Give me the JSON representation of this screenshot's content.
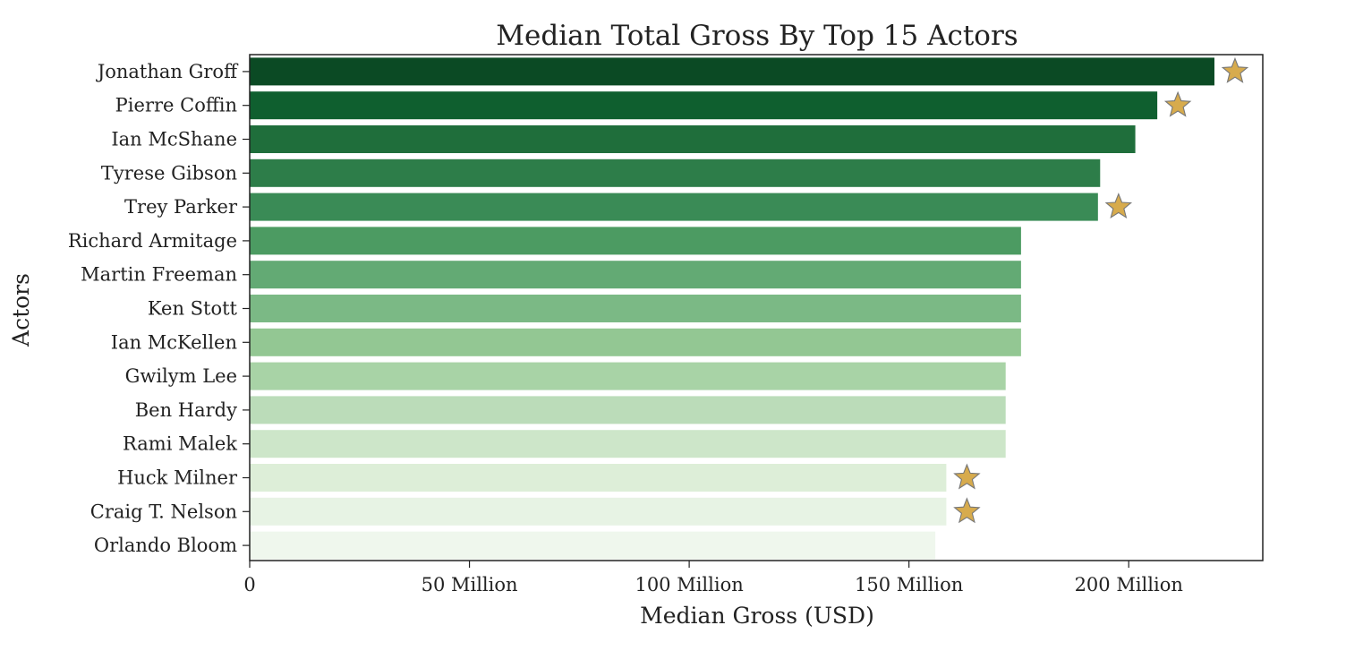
{
  "chart_data": {
    "type": "bar",
    "orientation": "horizontal",
    "title": "Median Total Gross By Top 15 Actors",
    "xlabel": "Median Gross (USD)",
    "ylabel": "Actors",
    "categories": [
      "Jonathan Groff",
      "Pierre Coffin",
      "Ian McShane",
      "Tyrese Gibson",
      "Trey Parker",
      "Richard Armitage",
      "Martin Freeman",
      "Ken Stott",
      "Ian McKellen",
      "Gwilym Lee",
      "Ben Hardy",
      "Rami Malek",
      "Huck Milner",
      "Craig T. Nelson",
      "Orlando Bloom"
    ],
    "values": [
      219500000,
      206500000,
      201500000,
      193500000,
      193000000,
      175500000,
      175500000,
      175500000,
      175500000,
      172000000,
      172000000,
      172000000,
      158500000,
      158500000,
      156000000
    ],
    "starred": [
      true,
      true,
      false,
      false,
      true,
      false,
      false,
      false,
      false,
      false,
      false,
      false,
      true,
      true,
      false
    ],
    "xlim": [
      0,
      230500000
    ],
    "xticks": [
      0,
      50000000,
      100000000,
      150000000,
      200000000
    ],
    "xtick_labels": [
      "0",
      "50 Million",
      "100 Million",
      "150 Million",
      "200 Million"
    ],
    "grid": false,
    "legend": "none",
    "colors": [
      "#0b4a24",
      "#0f5f2f",
      "#1f6e3b",
      "#2d7d49",
      "#3a8b56",
      "#4c9b62",
      "#63aa74",
      "#7bb985",
      "#93c793",
      "#a8d3a6",
      "#bbdcb9",
      "#cde6c9",
      "#ddeed8",
      "#e7f3e4",
      "#eff7ed"
    ],
    "star_color": "#d7ab4d",
    "star_stroke": "#777777"
  }
}
